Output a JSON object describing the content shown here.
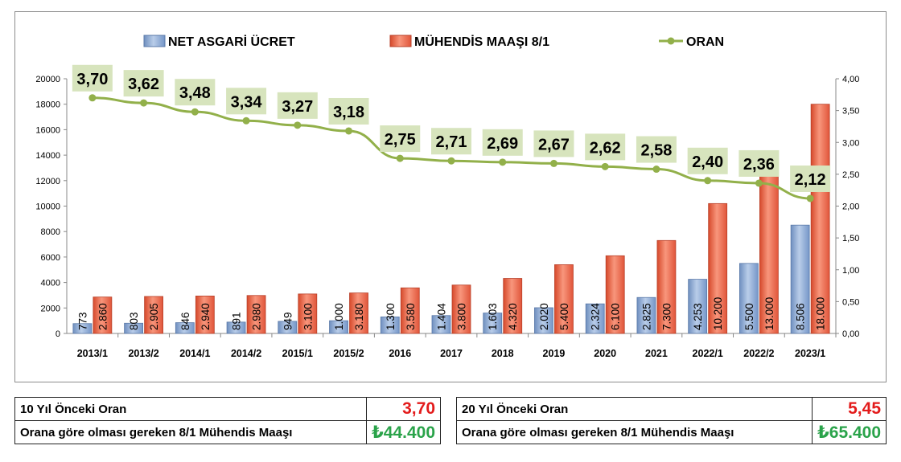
{
  "chart_data": {
    "type": "bar",
    "categories": [
      "2013/1",
      "2013/2",
      "2014/1",
      "2014/2",
      "2015/1",
      "2015/2",
      "2016",
      "2017",
      "2018",
      "2019",
      "2020",
      "2021",
      "2022/1",
      "2022/2",
      "2023/1"
    ],
    "series": [
      {
        "name": "NET ASGARİ ÜCRET",
        "type": "bar",
        "axis": "left",
        "values": [
          773,
          803,
          846,
          891,
          949,
          1000,
          1300,
          1404,
          1603,
          2020,
          2324,
          2825,
          4253,
          5500,
          8506
        ],
        "labels": [
          "773",
          "803",
          "846",
          "891",
          "949",
          "1.000",
          "1.300",
          "1.404",
          "1.603",
          "2.020",
          "2.324",
          "2.825",
          "4.253",
          "5.500",
          "8.506"
        ],
        "color": "#8db0dd"
      },
      {
        "name": "MÜHENDİS MAAŞI 8/1",
        "type": "bar",
        "axis": "left",
        "values": [
          2860,
          2905,
          2940,
          2980,
          3100,
          3180,
          3580,
          3800,
          4320,
          5400,
          6100,
          7300,
          10200,
          13000,
          18000
        ],
        "labels": [
          "2.860",
          "2.905",
          "2.940",
          "2.980",
          "3.100",
          "3.180",
          "3.580",
          "3.800",
          "4.320",
          "5.400",
          "6.100",
          "7.300",
          "10.200",
          "13.000",
          "18.000"
        ],
        "color": "#f2684a"
      },
      {
        "name": "ORAN",
        "type": "line",
        "axis": "right",
        "values": [
          3.7,
          3.62,
          3.48,
          3.34,
          3.27,
          3.18,
          2.75,
          2.71,
          2.69,
          2.67,
          2.62,
          2.58,
          2.4,
          2.36,
          2.12
        ],
        "labels": [
          "3,70",
          "3,62",
          "3,48",
          "3,34",
          "3,27",
          "3,18",
          "2,75",
          "2,71",
          "2,69",
          "2,67",
          "2,62",
          "2,58",
          "2,40",
          "2,36",
          "2,12"
        ],
        "color": "#92b04a"
      }
    ],
    "y_left": {
      "ylim": [
        0,
        20000
      ],
      "ticks": [
        "0",
        "2000",
        "4000",
        "6000",
        "8000",
        "10000",
        "12000",
        "14000",
        "16000",
        "18000",
        "20000"
      ]
    },
    "y_right": {
      "ylim": [
        0,
        4
      ],
      "ticks": [
        "0,00",
        "0,50",
        "1,00",
        "1,50",
        "2,00",
        "2,50",
        "3,00",
        "3,50",
        "4,00"
      ]
    },
    "legend_position": "top",
    "grid": false
  },
  "summary": {
    "left": {
      "label1": "10 Yıl Önceki Oran",
      "value1": "3,70",
      "label2": "Orana göre olması gereken 8/1 Mühendis Maaşı",
      "value2": "₺44.400"
    },
    "right": {
      "label1": "20 Yıl Önceki Oran",
      "value1": "5,45",
      "label2": "Orana göre olması gereken 8/1 Mühendis Maaşı",
      "value2": "₺65.400"
    },
    "colors": {
      "ratio": "#e31b1b",
      "salary": "#2aa34a"
    }
  }
}
